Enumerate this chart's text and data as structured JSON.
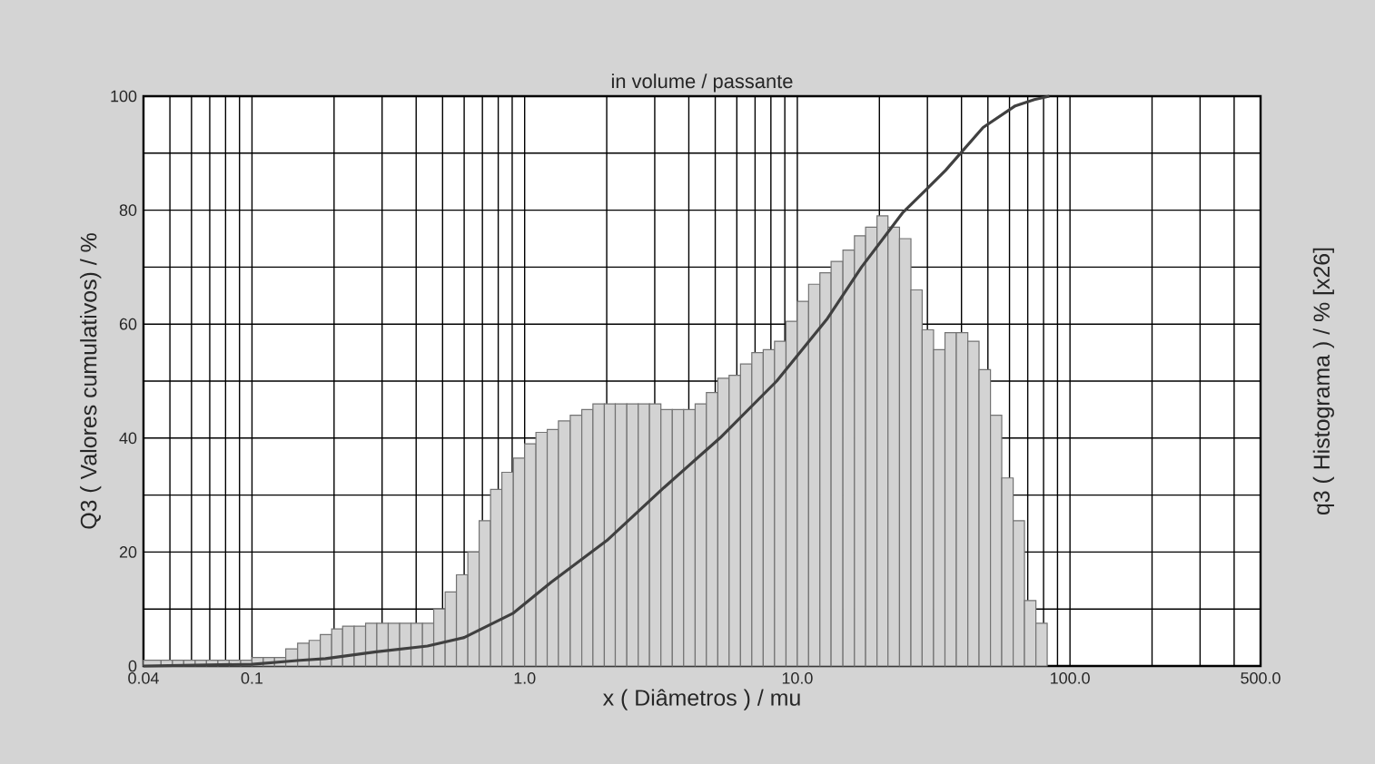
{
  "chart_data": {
    "type": "histogram",
    "title": "in volume / passante",
    "xlabel": "x ( Diâmetros ) / mu",
    "ylabel": "Q3 ( Valores cumulativos) / %",
    "y2label": "q3 ( Histograma ) / % [x26]",
    "log": "x",
    "grid": true,
    "xlim": [
      0.04,
      500
    ],
    "ylim": [
      0,
      100
    ],
    "xticks": [
      0.04,
      0.1,
      {
        "value": 1,
        "label": "1.0"
      },
      {
        "value": 10,
        "label": "10.0"
      },
      {
        "value": 100,
        "label": "100.0"
      },
      {
        "value": 500,
        "label": "500.0"
      }
    ],
    "yticks": [
      0,
      {
        "value": 10,
        "label": null
      },
      20,
      {
        "value": 30,
        "label": null
      },
      40,
      {
        "value": 50,
        "label": null
      },
      60,
      {
        "value": 70,
        "label": null
      },
      80,
      {
        "value": 90,
        "label": null
      },
      100
    ],
    "series": [
      {
        "type": "histogram",
        "color": "#d3d3d3",
        "bins": [
          0.04,
          0.0464,
          0.0511,
          0.0562,
          0.0619,
          0.0681,
          0.075,
          0.0825,
          0.0909,
          0.1,
          0.11,
          0.121,
          0.133,
          0.147,
          0.162,
          0.178,
          0.196,
          0.215,
          0.237,
          0.261,
          0.287,
          0.316,
          0.348,
          0.383,
          0.422,
          0.464,
          0.511,
          0.562,
          0.619,
          0.681,
          0.75,
          0.825,
          0.909,
          1,
          1.1,
          1.21,
          1.33,
          1.47,
          1.62,
          1.78,
          1.96,
          2.15,
          2.37,
          2.61,
          2.87,
          3.16,
          3.48,
          3.83,
          4.22,
          4.64,
          5.11,
          5.62,
          6.19,
          6.81,
          7.5,
          8.25,
          9.09,
          10,
          11,
          12.1,
          13.3,
          14.7,
          16.2,
          17.8,
          19.6,
          21.5,
          23.7,
          26.1,
          28.7,
          31.6,
          34.8,
          38.3,
          42.2,
          46.4,
          51.1,
          56.2,
          61.9,
          68.1,
          75,
          82.5
        ],
        "values": [
          1,
          1,
          1,
          1,
          1,
          1,
          1,
          1,
          1,
          1.5,
          1.5,
          1.5,
          3,
          4,
          4.5,
          5.5,
          6.5,
          7,
          7,
          7.5,
          7.5,
          7.5,
          7.5,
          7.5,
          7.5,
          10,
          13,
          16,
          20,
          25.5,
          31,
          34,
          36.5,
          39,
          41,
          41.5,
          43,
          44,
          45,
          46,
          46,
          46,
          46,
          46,
          46,
          45,
          45,
          45,
          46,
          48,
          50.5,
          51,
          53,
          55,
          55.5,
          57,
          60.5,
          64,
          67,
          69,
          71,
          73,
          75.5,
          77,
          79,
          77,
          75,
          66,
          59,
          55.5,
          58.5,
          58.5,
          57,
          52,
          44,
          33,
          25.5,
          11.5,
          7.5
        ]
      },
      {
        "type": "line",
        "color": "#404040",
        "x": [
          0.04,
          0.1,
          0.15,
          0.186,
          0.285,
          0.44,
          0.6,
          0.91,
          1.25,
          2,
          3.24,
          5.2,
          8.4,
          12.9,
          17.2,
          24.3,
          35,
          48,
          63,
          74,
          84
        ],
        "values": [
          0,
          0.3,
          1,
          1.3,
          2.5,
          3.5,
          5,
          9.3,
          14.7,
          22,
          31.3,
          40,
          50,
          61,
          70,
          79.5,
          87,
          94.5,
          98.3,
          99.4,
          100
        ]
      }
    ]
  }
}
